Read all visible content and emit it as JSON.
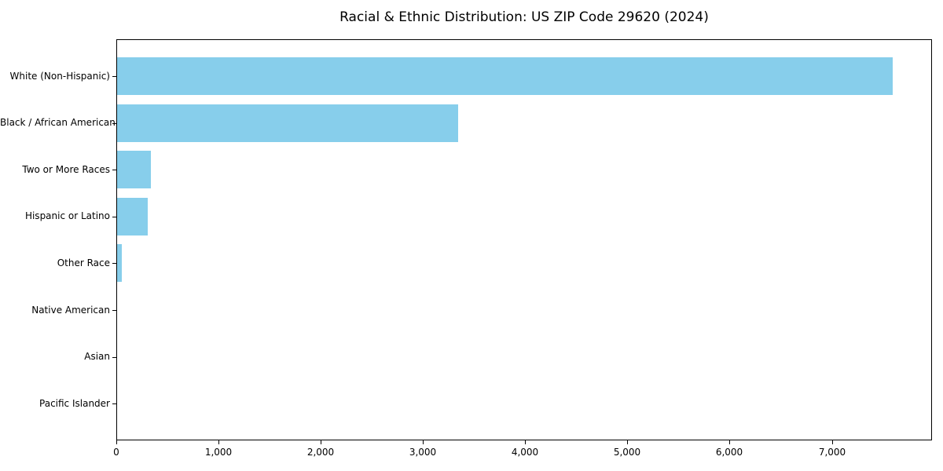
{
  "chart_data": {
    "type": "bar",
    "orientation": "horizontal",
    "title": "Racial & Ethnic Distribution: US ZIP Code 29620 (2024)",
    "categories": [
      "White (Non-Hispanic)",
      "Black / African American",
      "Two or More Races",
      "Hispanic or Latino",
      "Other Race",
      "Native American",
      "Asian",
      "Pacific Islander"
    ],
    "values": [
      7600,
      3340,
      335,
      300,
      50,
      0,
      0,
      0
    ],
    "xlabel": "",
    "ylabel": "",
    "xlim": [
      0,
      7980
    ],
    "x_ticks": [
      0,
      1000,
      2000,
      3000,
      4000,
      5000,
      6000,
      7000
    ],
    "x_tick_labels": [
      "0",
      "1,000",
      "2,000",
      "3,000",
      "4,000",
      "5,000",
      "6,000",
      "7,000"
    ],
    "bar_color": "#87CEEB",
    "axis_color": "#000000",
    "grid": false,
    "legend": null
  }
}
